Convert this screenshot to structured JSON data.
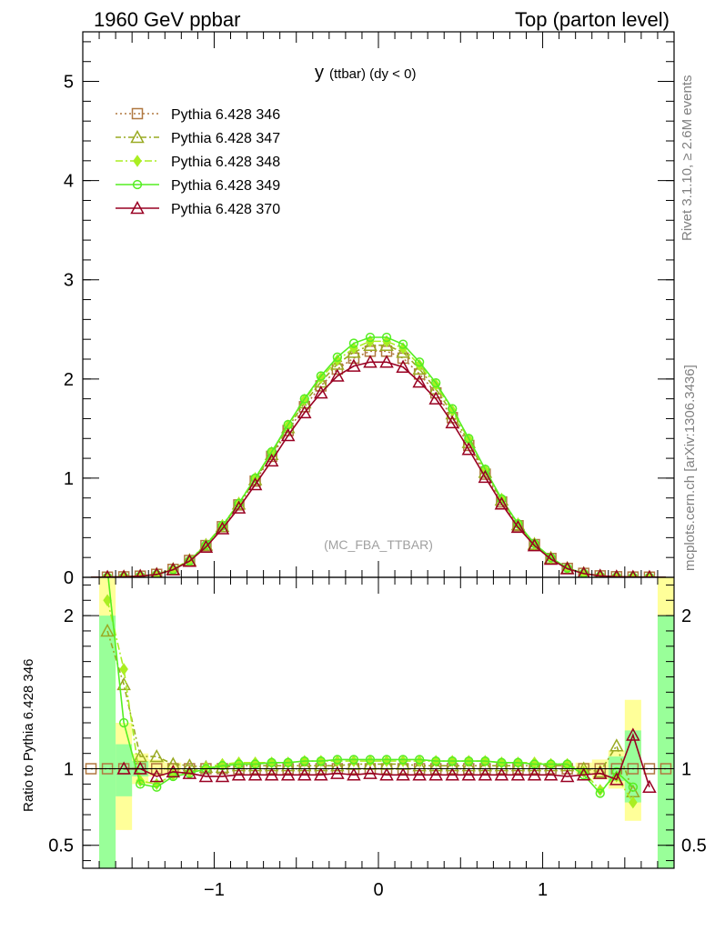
{
  "header": {
    "left": "1960 GeV ppbar",
    "right": "Top (parton level)",
    "side_rivet": "Rivet 3.1.10, ≥ 2.6M events",
    "side_mcplots": "mcplots.cern.ch [arXiv:1306.3436]",
    "analysis": "(MC_FBA_TTBAR)",
    "title_main": "y",
    "title_sub": "(ttbar) (dy < 0)"
  },
  "ratio_ylabel": "Ratio to Pythia 6.428 346",
  "chart_data": {
    "type": "line",
    "title": "y (ttbar) (dy < 0)",
    "xlim": [
      -1.8,
      1.8
    ],
    "main_ylim": [
      0,
      5.5
    ],
    "ratio_ylim": [
      0.35,
      2.25
    ],
    "x_ticks": [
      {
        "v": -1,
        "label": "−1"
      },
      {
        "v": 0,
        "label": "0"
      },
      {
        "v": 1,
        "label": "1"
      }
    ],
    "main_yticks": [
      {
        "v": 0,
        "label": "0"
      },
      {
        "v": 1,
        "label": "1"
      },
      {
        "v": 2,
        "label": "2"
      },
      {
        "v": 3,
        "label": "3"
      },
      {
        "v": 4,
        "label": "4"
      },
      {
        "v": 5,
        "label": "5"
      }
    ],
    "ratio_yticks": [
      {
        "v": 0.5,
        "label": "0.5"
      },
      {
        "v": 1,
        "label": "1"
      },
      {
        "v": 2,
        "label": "2"
      }
    ],
    "x": [
      -1.75,
      -1.65,
      -1.55,
      -1.45,
      -1.35,
      -1.25,
      -1.15,
      -1.05,
      -0.95,
      -0.85,
      -0.75,
      -0.65,
      -0.55,
      -0.45,
      -0.35,
      -0.25,
      -0.15,
      -0.05,
      0.05,
      0.15,
      0.25,
      0.35,
      0.45,
      0.55,
      0.65,
      0.75,
      0.85,
      0.95,
      1.05,
      1.15,
      1.25,
      1.35,
      1.45,
      1.55,
      1.65,
      1.75
    ],
    "series": [
      {
        "name": "Pythia 6.428 346",
        "color": "#b07840",
        "marker": "square",
        "dash": "2,3",
        "values": [
          0.001,
          0.002,
          0.005,
          0.012,
          0.03,
          0.08,
          0.17,
          0.32,
          0.51,
          0.73,
          0.97,
          1.22,
          1.48,
          1.72,
          1.93,
          2.1,
          2.21,
          2.28,
          2.28,
          2.21,
          2.05,
          1.86,
          1.61,
          1.33,
          1.04,
          0.76,
          0.52,
          0.33,
          0.19,
          0.09,
          0.04,
          0.015,
          0.006,
          0.003,
          0.002,
          0.001
        ],
        "ratio": [
          1,
          1,
          1,
          1,
          1,
          1,
          1,
          1,
          1,
          1,
          1,
          1,
          1,
          1,
          1,
          1,
          1,
          1,
          1,
          1,
          1,
          1,
          1,
          1,
          1,
          1,
          1,
          1,
          1,
          1,
          1,
          1,
          1,
          1,
          1,
          1
        ]
      },
      {
        "name": "Pythia 6.428 347",
        "color": "#99aa22",
        "marker": "triangle",
        "dash": "6,3,2,3",
        "values": [
          0.001,
          0.002,
          0.006,
          0.013,
          0.032,
          0.082,
          0.172,
          0.325,
          0.515,
          0.74,
          0.985,
          1.24,
          1.51,
          1.76,
          1.97,
          2.15,
          2.27,
          2.34,
          2.34,
          2.27,
          2.1,
          1.9,
          1.65,
          1.36,
          1.06,
          0.78,
          0.53,
          0.335,
          0.195,
          0.092,
          0.041,
          0.015,
          0.006,
          0.003,
          0.002,
          0.001
        ],
        "ratio": [
          null,
          1.9,
          1.55,
          1.08,
          1.08,
          1.03,
          1.02,
          1.01,
          1.01,
          1.02,
          1.02,
          1.02,
          1.02,
          1.02,
          1.02,
          1.02,
          1.03,
          1.03,
          1.03,
          1.03,
          1.02,
          1.02,
          1.02,
          1.02,
          1.02,
          1.02,
          1.02,
          1.02,
          1.02,
          1.02,
          1.0,
          0.98,
          1.15,
          0.85,
          null,
          null
        ]
      },
      {
        "name": "Pythia 6.428 348",
        "color": "#aaee22",
        "marker": "diamond",
        "dash": "8,3,2,3",
        "values": [
          0.001,
          0.002,
          0.006,
          0.013,
          0.031,
          0.082,
          0.175,
          0.33,
          0.525,
          0.75,
          1.0,
          1.26,
          1.53,
          1.79,
          2.01,
          2.19,
          2.31,
          2.38,
          2.38,
          2.31,
          2.14,
          1.94,
          1.68,
          1.39,
          1.08,
          0.79,
          0.54,
          0.34,
          0.198,
          0.093,
          0.04,
          0.014,
          0.006,
          0.003,
          0.002,
          0.001
        ],
        "ratio": [
          null,
          2.1,
          1.65,
          0.92,
          0.9,
          0.96,
          0.98,
          1.01,
          1.03,
          1.04,
          1.04,
          1.04,
          1.04,
          1.05,
          1.05,
          1.05,
          1.05,
          1.05,
          1.05,
          1.05,
          1.05,
          1.05,
          1.05,
          1.05,
          1.05,
          1.04,
          1.04,
          1.04,
          1.03,
          1.03,
          0.98,
          0.86,
          0.95,
          0.78,
          null,
          null
        ]
      },
      {
        "name": "Pythia 6.428 349",
        "color": "#55ee22",
        "marker": "circle",
        "dash": "",
        "values": [
          0.001,
          0.002,
          0.006,
          0.012,
          0.028,
          0.077,
          0.168,
          0.325,
          0.52,
          0.745,
          1.0,
          1.265,
          1.54,
          1.8,
          2.03,
          2.22,
          2.36,
          2.42,
          2.42,
          2.35,
          2.17,
          1.96,
          1.7,
          1.4,
          1.09,
          0.79,
          0.54,
          0.34,
          0.198,
          0.093,
          0.04,
          0.013,
          0.006,
          0.003,
          0.002,
          0.001
        ],
        "ratio": [
          null,
          2.3,
          1.3,
          0.9,
          0.88,
          0.95,
          0.97,
          1.0,
          1.02,
          1.03,
          1.03,
          1.04,
          1.04,
          1.05,
          1.05,
          1.06,
          1.06,
          1.06,
          1.06,
          1.06,
          1.06,
          1.05,
          1.05,
          1.05,
          1.05,
          1.04,
          1.04,
          1.03,
          1.03,
          1.03,
          0.96,
          0.84,
          0.98,
          0.88,
          null,
          null
        ]
      },
      {
        "name": "Pythia 6.428 370",
        "color": "#990022",
        "marker": "triangle",
        "dash": "",
        "values": [
          0.001,
          0.002,
          0.005,
          0.012,
          0.029,
          0.077,
          0.163,
          0.305,
          0.49,
          0.7,
          0.935,
          1.175,
          1.43,
          1.66,
          1.86,
          2.03,
          2.13,
          2.17,
          2.17,
          2.12,
          1.97,
          1.8,
          1.56,
          1.29,
          1.01,
          0.74,
          0.505,
          0.32,
          0.183,
          0.087,
          0.038,
          0.014,
          0.006,
          0.003,
          0.002,
          0.001
        ],
        "ratio": [
          null,
          null,
          1.0,
          1.0,
          0.95,
          0.98,
          0.97,
          0.95,
          0.95,
          0.96,
          0.96,
          0.96,
          0.96,
          0.96,
          0.96,
          0.97,
          0.96,
          0.97,
          0.96,
          0.96,
          0.96,
          0.96,
          0.96,
          0.96,
          0.96,
          0.96,
          0.96,
          0.96,
          0.96,
          0.95,
          0.96,
          0.97,
          0.93,
          1.22,
          0.88,
          null
        ]
      }
    ],
    "bands": [
      {
        "name": "stat-band-yellow",
        "color": "#ffff99",
        "bins": [
          [
            -1.7,
            -1.6,
            0.35,
            2.25
          ],
          [
            -1.6,
            -1.5,
            0.6,
            1.3
          ],
          [
            -1.5,
            -1.4,
            0.9,
            1.1
          ],
          [
            -1.4,
            -1.3,
            0.95,
            1.06
          ],
          [
            -1.3,
            -1.2,
            0.97,
            1.04
          ],
          [
            1.2,
            1.3,
            0.97,
            1.04
          ],
          [
            1.3,
            1.4,
            0.93,
            1.06
          ],
          [
            1.4,
            1.5,
            0.87,
            1.12
          ],
          [
            1.5,
            1.6,
            0.66,
            1.45
          ],
          [
            1.7,
            1.8,
            0.35,
            2.25
          ]
        ]
      },
      {
        "name": "stat-band-green",
        "color": "#99ff99",
        "bins": [
          [
            -1.7,
            -1.6,
            0.35,
            2.0
          ],
          [
            -1.6,
            -1.5,
            0.82,
            1.16
          ],
          [
            -1.5,
            -1.4,
            0.95,
            1.05
          ],
          [
            1.4,
            1.5,
            0.92,
            1.08
          ],
          [
            1.5,
            1.6,
            0.78,
            1.25
          ],
          [
            1.7,
            1.8,
            0.35,
            2.0
          ]
        ]
      }
    ]
  }
}
